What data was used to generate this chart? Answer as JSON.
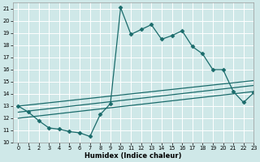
{
  "title": "",
  "xlabel": "Humidex (Indice chaleur)",
  "xlim": [
    -0.5,
    23
  ],
  "ylim": [
    10,
    21.5
  ],
  "xticks": [
    0,
    1,
    2,
    3,
    4,
    5,
    6,
    7,
    8,
    9,
    10,
    11,
    12,
    13,
    14,
    15,
    16,
    17,
    18,
    19,
    20,
    21,
    22,
    23
  ],
  "yticks": [
    10,
    11,
    12,
    13,
    14,
    15,
    16,
    17,
    18,
    19,
    20,
    21
  ],
  "bg_color": "#cfe8e8",
  "line_color": "#1a6b6b",
  "grid_color": "#ffffff",
  "lines": [
    {
      "x": [
        0,
        1,
        2,
        3,
        4,
        5,
        6,
        7,
        8,
        9,
        10,
        11,
        12,
        13,
        14,
        15,
        16,
        17,
        18,
        19,
        20,
        21,
        22,
        23
      ],
      "y": [
        13.0,
        12.5,
        11.8,
        11.2,
        11.1,
        10.9,
        10.8,
        10.5,
        12.3,
        13.2,
        21.1,
        18.9,
        19.3,
        19.7,
        18.5,
        18.8,
        19.2,
        17.9,
        17.3,
        16.0,
        16.0,
        14.2,
        13.3,
        14.1
      ],
      "marker": "D",
      "ms": 2.5,
      "lw": 0.9,
      "with_marker": true
    },
    {
      "x": [
        0,
        23
      ],
      "y": [
        13.0,
        15.1
      ],
      "marker": null,
      "ms": 0,
      "lw": 0.9,
      "with_marker": false
    },
    {
      "x": [
        0,
        23
      ],
      "y": [
        12.5,
        14.7
      ],
      "marker": null,
      "ms": 0,
      "lw": 0.9,
      "with_marker": false
    },
    {
      "x": [
        0,
        23
      ],
      "y": [
        12.0,
        14.2
      ],
      "marker": null,
      "ms": 0,
      "lw": 0.9,
      "with_marker": false
    }
  ]
}
